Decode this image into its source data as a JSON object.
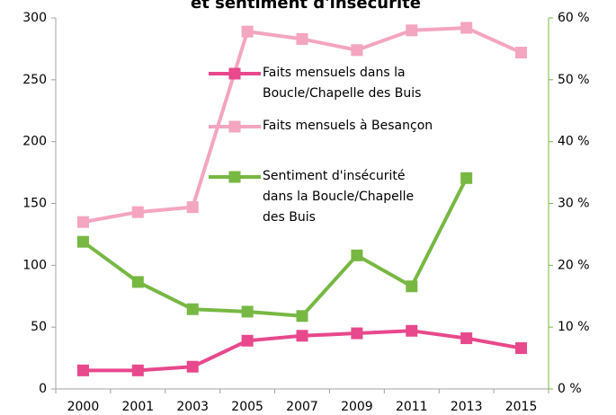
{
  "chart_data": {
    "type": "line",
    "title": "et sentiment d'insécurité",
    "categories": [
      "2000",
      "2001",
      "2003",
      "2005",
      "2007",
      "2009",
      "2011",
      "2013",
      "2015"
    ],
    "series": [
      {
        "name": "Faits mensuels dans la Boucle/Chapelle des Buis",
        "color": "#e8488c",
        "values": [
          15,
          15,
          18,
          39,
          43,
          45,
          47,
          41,
          33
        ]
      },
      {
        "name": "Faits mensuels à Besançon",
        "color": "#f4a5c0",
        "values": [
          135,
          143,
          147,
          289,
          283,
          274,
          290,
          292,
          272
        ]
      },
      {
        "name": "Sentiment d'insécurité dans la Boucle/Chapelle des Buis",
        "color": "#77b843",
        "axis": "y2",
        "values": [
          23.8,
          17.3,
          12.9,
          12.5,
          11.8,
          21.6,
          16.6,
          34.1,
          null
        ]
      }
    ],
    "ylim": [
      0,
      300
    ],
    "yticks": [
      0,
      50,
      100,
      150,
      200,
      250,
      300
    ],
    "y2lim": [
      0,
      60
    ],
    "y2ticks": [
      {
        "value": 0,
        "label": "0 %"
      },
      {
        "value": 10,
        "label": "10 %"
      },
      {
        "value": 20,
        "label": "20 %"
      },
      {
        "value": 30,
        "label": "30 %"
      },
      {
        "value": 40,
        "label": "40 %"
      },
      {
        "value": 50,
        "label": "50 %"
      },
      {
        "value": 60,
        "label": "60 %"
      }
    ],
    "grid": false
  }
}
